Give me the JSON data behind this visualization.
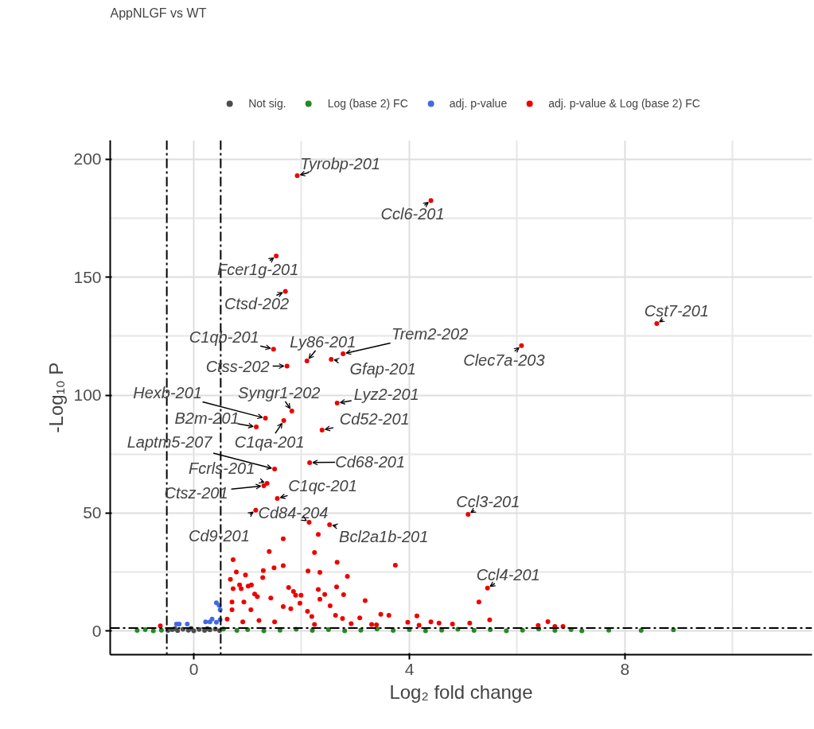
{
  "chart_data": {
    "type": "scatter",
    "title": "AppNLGF vs WT",
    "xlabel": "Log₂ fold change",
    "ylabel": "-Log₁₀ P",
    "xlim": [
      -1.55,
      11.47
    ],
    "ylim": [
      -10,
      208
    ],
    "xticks": [
      0,
      4,
      8
    ],
    "yticks": [
      0,
      50,
      100,
      150,
      200
    ],
    "grid": true,
    "legend": "top",
    "marker": "circle",
    "series": [
      {
        "name": "Not sig.",
        "color": "#4d4d4d",
        "x": [
          -0.48,
          -0.4,
          -0.3,
          -0.2,
          -0.1,
          0,
          0.1,
          0.2,
          0.3,
          0.4,
          0.48,
          -0.35,
          -0.05,
          0.25
        ],
        "values": [
          0.3,
          0.6,
          0.2,
          0.8,
          0.4,
          0.1,
          0.7,
          0.3,
          0.5,
          0.9,
          0.2,
          1.0,
          1.1,
          1.0
        ]
      },
      {
        "name": "Log (base 2) FC",
        "color": "#228b22",
        "x": [
          -1.05,
          -0.9,
          -0.75,
          -0.6,
          0.55,
          0.8,
          1.0,
          1.3,
          1.6,
          1.9,
          2.2,
          2.5,
          2.8,
          3.1,
          3.4,
          3.7,
          4.0,
          4.3,
          4.6,
          4.9,
          5.2,
          5.5,
          5.8,
          6.1,
          6.4,
          6.7,
          7.0,
          7.2,
          7.7,
          8.3,
          8.9
        ],
        "values": [
          0.3,
          0.6,
          0.1,
          0.4,
          0.9,
          0.3,
          0.6,
          0.1,
          0.4,
          0.8,
          0.3,
          0.6,
          0.1,
          0.4,
          0.9,
          0.3,
          0.6,
          0.1,
          0.4,
          0.8,
          0.3,
          0.6,
          0.1,
          0.4,
          0.9,
          0.3,
          0.6,
          0.1,
          0.4,
          0.3,
          0.5
        ]
      },
      {
        "name": "adj. p-value",
        "color": "#4169e1",
        "x": [
          0.42,
          0.47,
          0.49,
          0.34,
          0.22,
          -0.27,
          -0.12,
          0.49,
          0.3,
          0.42,
          -0.32
        ],
        "values": [
          12.0,
          10.9,
          9.0,
          5.1,
          3.9,
          3.0,
          3.0,
          4.8,
          3.9,
          3.7,
          3.0
        ]
      },
      {
        "name": "adj. p-value & Log (base 2) FC",
        "color": "#ee0000",
        "x": [
          1.92,
          4.4,
          1.53,
          1.7,
          8.59,
          6.08,
          1.48,
          2.1,
          2.77,
          2.55,
          1.73,
          1.82,
          1.33,
          2.66,
          1.16,
          1.67,
          2.38,
          1.5,
          2.15,
          1.36,
          1.3,
          1.55,
          2.14,
          2.52,
          1.15,
          5.09,
          5.45,
          0.73,
          0.79,
          0.96,
          0.68,
          0.85,
          0.73,
          0.88,
          1.01,
          1.07,
          1.13,
          1.29,
          1.28,
          1.4,
          1.49,
          1.66,
          1.66,
          1.76,
          1.85,
          1.89,
          1.99,
          1.97,
          2.12,
          2.11,
          2.24,
          2.34,
          2.31,
          2.31,
          2.43,
          2.34,
          2.53,
          2.66,
          2.65,
          2.78,
          2.85,
          3.18,
          3.74,
          3.47,
          3.62,
          4.14,
          3.97,
          4.4,
          4.55,
          4.8,
          5.12,
          5.29,
          5.49,
          2.92,
          3.08,
          3.3,
          0.71,
          0.93,
          0.71,
          1.06,
          1.18,
          1.43,
          1.66,
          1.8,
          2.19,
          2.24,
          2.63,
          2.76,
          3.39,
          4.18,
          0.62,
          0.91,
          1.21,
          1.5,
          -0.62,
          6.39,
          6.57,
          6.7,
          6.85
        ],
        "values": [
          193,
          182.5,
          159,
          144,
          130.3,
          121,
          119.5,
          114.5,
          117.5,
          115.2,
          112.3,
          93.3,
          90.2,
          96.6,
          86.5,
          89.2,
          85.2,
          68.7,
          71.4,
          62.6,
          61.6,
          56.2,
          46.1,
          45.1,
          51.2,
          49.5,
          18.2,
          30.3,
          25.0,
          23.8,
          21.9,
          19.6,
          18.0,
          18.0,
          19.1,
          19.6,
          15.7,
          25.6,
          22.7,
          33.7,
          26.8,
          27.7,
          39.1,
          18.5,
          16.8,
          15.2,
          15.2,
          11.8,
          25.5,
          8.4,
          33.3,
          24.9,
          17.6,
          41.0,
          15.5,
          13.5,
          10.7,
          29.2,
          18.7,
          15.4,
          23.2,
          12.9,
          27.9,
          7.1,
          6.7,
          6.4,
          3.7,
          3.9,
          3.4,
          3.0,
          3.4,
          12.3,
          4.7,
          3.1,
          5.6,
          2.8,
          12.3,
          12.3,
          9.0,
          9.0,
          14.6,
          14.0,
          10.4,
          9.5,
          6.2,
          2.8,
          6.7,
          5.3,
          2.6,
          2.5,
          5.1,
          3.9,
          4.5,
          3.9,
          2.2,
          2.4,
          4.0,
          2.0,
          2.0
        ]
      }
    ],
    "ref_lines": [
      {
        "axis": "x",
        "value": -0.5,
        "line_style": "dashdot"
      },
      {
        "axis": "x",
        "value": 0.5,
        "line_style": "dashdot"
      },
      {
        "axis": "y",
        "value": 1.3,
        "line_style": "dashdot"
      }
    ],
    "annotations": [
      {
        "text": "Tyrobp-201",
        "x": 1.92,
        "y": 193
      },
      {
        "text": "Ccl6-201",
        "x": 4.4,
        "y": 182.5
      },
      {
        "text": "Fcer1g-201",
        "x": 1.53,
        "y": 159
      },
      {
        "text": "Ctsd-202",
        "x": 1.7,
        "y": 144
      },
      {
        "text": "Cst7-201",
        "x": 8.59,
        "y": 130.3
      },
      {
        "text": "Clec7a-203",
        "x": 6.08,
        "y": 121
      },
      {
        "text": "C1qb-201",
        "x": 1.48,
        "y": 119.5
      },
      {
        "text": "Ly86-201",
        "x": 2.1,
        "y": 114.5
      },
      {
        "text": "Trem2-202",
        "x": 2.77,
        "y": 117.5
      },
      {
        "text": "Gfap-201",
        "x": 2.55,
        "y": 115.2
      },
      {
        "text": "Ctss-202",
        "x": 1.73,
        "y": 112.3
      },
      {
        "text": "Syngr1-202",
        "x": 1.82,
        "y": 93.3
      },
      {
        "text": "Hexb-201",
        "x": 1.33,
        "y": 90.2
      },
      {
        "text": "Lyz2-201",
        "x": 2.66,
        "y": 96.6
      },
      {
        "text": "B2m-201",
        "x": 1.16,
        "y": 86.5
      },
      {
        "text": "C1qa-201",
        "x": 1.67,
        "y": 89.2
      },
      {
        "text": "Cd52-201",
        "x": 2.38,
        "y": 85.2
      },
      {
        "text": "Laptm5-207",
        "x": 1.5,
        "y": 68.7
      },
      {
        "text": "Cd68-201",
        "x": 2.15,
        "y": 71.4
      },
      {
        "text": "Fcrls-201",
        "x": 1.36,
        "y": 62.6
      },
      {
        "text": "Ctsz-201",
        "x": 1.3,
        "y": 61.6
      },
      {
        "text": "C1qc-201",
        "x": 1.55,
        "y": 56.2
      },
      {
        "text": "Cd84-204",
        "x": 2.14,
        "y": 46.1
      },
      {
        "text": "Bcl2a1b-201",
        "x": 2.52,
        "y": 45.1
      },
      {
        "text": "Cd9-201",
        "x": 1.15,
        "y": 51.2
      },
      {
        "text": "Ccl3-201",
        "x": 5.09,
        "y": 49.5
      },
      {
        "text": "Ccl4-201",
        "x": 5.45,
        "y": 18.2
      }
    ]
  }
}
